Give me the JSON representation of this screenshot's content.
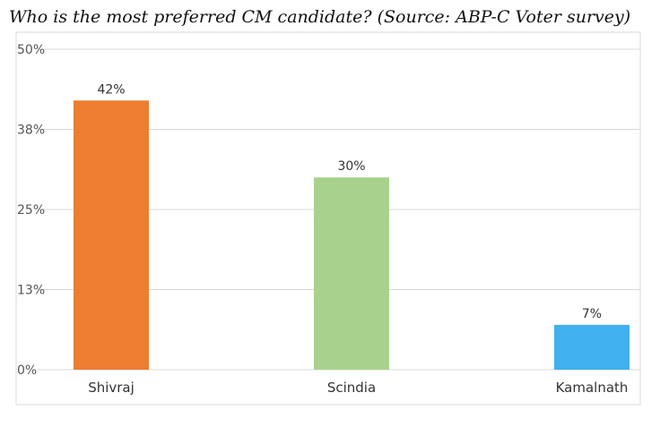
{
  "chart_data": {
    "type": "bar",
    "title": "Who is the most preferred CM candidate? (Source: ABP-C Voter survey)",
    "categories": [
      "Shivraj",
      "Scindia",
      "Kamalnath"
    ],
    "values": [
      42,
      30,
      7
    ],
    "data_labels": [
      "42%",
      "30%",
      "7%"
    ],
    "bar_colors": [
      "#ED7D31",
      "#A9D18E",
      "#41B0EE"
    ],
    "yticks": [
      0,
      12.5,
      25,
      37.5,
      50
    ],
    "ytick_labels": [
      "0%",
      "13%",
      "25%",
      "38%",
      "50%"
    ],
    "ylim": [
      0,
      50
    ],
    "grid": true,
    "xlabel": "",
    "ylabel": ""
  }
}
